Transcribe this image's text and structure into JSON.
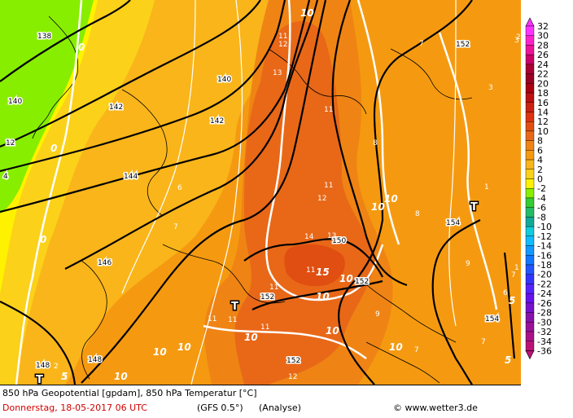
{
  "footer": {
    "title": "850 hPa Geopotential [gpdam], 850 hPa Temperatur [°C]",
    "date": "Donnerstag, 18-05-2017  06 UTC",
    "model": "(GFS 0.5°)",
    "run": "(Analyse)",
    "copyright": "© www.wetter3.de"
  },
  "legend": {
    "levels": [
      "32",
      "30",
      "28",
      "26",
      "24",
      "22",
      "20",
      "18",
      "16",
      "14",
      "12",
      "10",
      "8",
      "6",
      "4",
      "2",
      "0",
      "-2",
      "-4",
      "-6",
      "-8",
      "-10",
      "-12",
      "-14",
      "-16",
      "-18",
      "-20",
      "-22",
      "-24",
      "-26",
      "-28",
      "-30",
      "-32",
      "-34",
      "-36"
    ],
    "colors": [
      "#ff33ff",
      "#ff22cc",
      "#ee1199",
      "#cc0066",
      "#aa0033",
      "#990022",
      "#aa0011",
      "#bb1111",
      "#cc2211",
      "#dd3311",
      "#e04e11",
      "#e86818",
      "#ef8414",
      "#f59a10",
      "#f9b51a",
      "#fbd11a",
      "#fff200",
      "#88ee00",
      "#33cc33",
      "#22bb66",
      "#11aa99",
      "#11ccdd",
      "#11bbff",
      "#1199ff",
      "#1177ff",
      "#2255ff",
      "#3333ff",
      "#5522ff",
      "#6611ee",
      "#7711cc",
      "#8811aa",
      "#991199",
      "#aa1188",
      "#bb1177"
    ]
  },
  "map": {
    "geopotential_labels": [
      {
        "text": "138"
      },
      {
        "text": "140"
      },
      {
        "text": "142"
      },
      {
        "text": "142"
      },
      {
        "text": "140"
      },
      {
        "text": "144"
      },
      {
        "text": "146"
      },
      {
        "text": "148"
      },
      {
        "text": "148"
      },
      {
        "text": "150"
      },
      {
        "text": "152"
      },
      {
        "text": "152"
      },
      {
        "text": "152"
      },
      {
        "text": "152"
      },
      {
        "text": "154"
      },
      {
        "text": "154"
      },
      {
        "text": "12"
      },
      {
        "text": "4"
      }
    ],
    "temp_labels_bold": [
      {
        "text": "10"
      },
      {
        "text": "10"
      },
      {
        "text": "10"
      },
      {
        "text": "10"
      },
      {
        "text": "10"
      },
      {
        "text": "10"
      },
      {
        "text": "10"
      },
      {
        "text": "10"
      },
      {
        "text": "10"
      },
      {
        "text": "10"
      },
      {
        "text": "10"
      },
      {
        "text": "15"
      },
      {
        "text": "5"
      },
      {
        "text": "5"
      },
      {
        "text": "5"
      },
      {
        "text": "5"
      },
      {
        "text": "0"
      },
      {
        "text": "0"
      },
      {
        "text": "0"
      },
      {
        "text": "0"
      }
    ],
    "temp_labels_thin": [
      {
        "text": "11"
      },
      {
        "text": "12"
      },
      {
        "text": "13"
      },
      {
        "text": "11"
      },
      {
        "text": "11"
      },
      {
        "text": "12"
      },
      {
        "text": "14"
      },
      {
        "text": "13"
      },
      {
        "text": "11"
      },
      {
        "text": "11"
      },
      {
        "text": "11"
      },
      {
        "text": "11"
      },
      {
        "text": "11"
      },
      {
        "text": "12"
      },
      {
        "text": "6"
      },
      {
        "text": "7"
      },
      {
        "text": "7"
      },
      {
        "text": "8"
      },
      {
        "text": "8"
      },
      {
        "text": "9"
      },
      {
        "text": "9"
      },
      {
        "text": "7"
      },
      {
        "text": "7"
      },
      {
        "text": "3"
      },
      {
        "text": "3"
      },
      {
        "text": "2"
      },
      {
        "text": "6"
      },
      {
        "text": "7"
      },
      {
        "text": "1"
      },
      {
        "text": "1"
      },
      {
        "text": "2"
      },
      {
        "text": "3"
      }
    ],
    "pressure_centers": [
      {
        "text": "T"
      },
      {
        "text": "T"
      },
      {
        "text": "T"
      },
      {
        "text": "T"
      }
    ]
  }
}
